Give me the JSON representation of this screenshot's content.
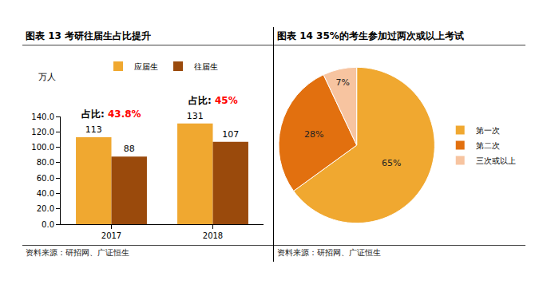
{
  "chart_data": [
    {
      "type": "bar",
      "title": "图表 13  考研往届生占比提升",
      "ylabel": "万人",
      "categories": [
        "2017",
        "2018"
      ],
      "series": [
        {
          "name": "应届生",
          "color": "#F0A830",
          "values": [
            113,
            131
          ]
        },
        {
          "name": "往届生",
          "color": "#9A4A0C",
          "values": [
            88,
            107
          ]
        }
      ],
      "ylim": [
        0,
        140
      ],
      "yticks": [
        {
          "value": 0,
          "label": "0.0"
        },
        {
          "value": 20,
          "label": "20.0"
        },
        {
          "value": 40,
          "label": "40.0"
        },
        {
          "value": 60,
          "label": "60.0"
        },
        {
          "value": 80,
          "label": "80.0"
        },
        {
          "value": 100,
          "label": "100.0"
        },
        {
          "value": 120,
          "label": "120.0"
        },
        {
          "value": 140,
          "label": "140.0"
        }
      ],
      "data_labels": true,
      "grid": false,
      "legend": "top",
      "annotations": [
        {
          "category": "2017",
          "text": "占比:",
          "highlight": "43.8%"
        },
        {
          "category": "2018",
          "text": "占比:",
          "highlight": "45%"
        }
      ],
      "source": "资料来源：研招网、广证恒生"
    },
    {
      "type": "pie",
      "title": "图表 14  35%的考生参加过两次或以上考试",
      "categories": [
        "第一次",
        "第二次",
        "三次或以上"
      ],
      "values": [
        65,
        28,
        7
      ],
      "value_labels": [
        "65%",
        "28%",
        "7%"
      ],
      "colors": [
        "#F0A830",
        "#E2700F",
        "#F7C4A0"
      ],
      "data_labels": true,
      "legend": "right",
      "source": "资料来源：研招网、广证恒生"
    }
  ]
}
